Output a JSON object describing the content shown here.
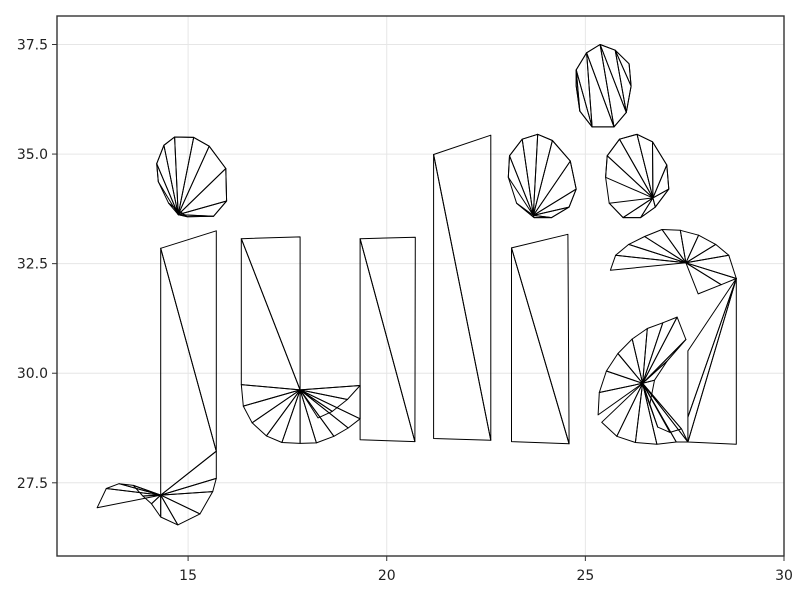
{
  "chart_data": {
    "type": "triangulation",
    "title": "",
    "xlabel": "",
    "ylabel": "",
    "xlim": [
      11.7,
      30.0
    ],
    "ylim": [
      25.83,
      38.15
    ],
    "grid": true,
    "line_color": "#000000",
    "x_ticks": [
      {
        "value": 15,
        "label": "15"
      },
      {
        "value": 20,
        "label": "20"
      },
      {
        "value": 25,
        "label": "25"
      },
      {
        "value": 30,
        "label": "30"
      }
    ],
    "y_ticks": [
      {
        "value": 27.5,
        "label": "27.5"
      },
      {
        "value": 30.0,
        "label": "30.0"
      },
      {
        "value": 32.5,
        "label": "32.5"
      },
      {
        "value": 35.0,
        "label": "35.0"
      },
      {
        "value": 37.5,
        "label": "37.5"
      }
    ],
    "shapes": [
      {
        "name": "j-dot",
        "points": [
          [
            14.25,
            34.37
          ],
          [
            14.21,
            34.78
          ],
          [
            14.39,
            35.2
          ],
          [
            14.66,
            35.39
          ],
          [
            15.14,
            35.38
          ],
          [
            15.53,
            35.18
          ],
          [
            15.95,
            34.67
          ],
          [
            15.97,
            33.93
          ],
          [
            15.64,
            33.58
          ],
          [
            14.97,
            33.57
          ],
          [
            14.51,
            33.88
          ]
        ],
        "hub": [
          14.75,
          33.62
        ],
        "hubs2": []
      },
      {
        "name": "i-dot",
        "points": [
          [
            24.77,
            36.55
          ],
          [
            24.77,
            36.92
          ],
          [
            25.03,
            37.31
          ],
          [
            25.37,
            37.5
          ],
          [
            25.75,
            37.37
          ],
          [
            26.1,
            37.06
          ],
          [
            26.15,
            36.55
          ],
          [
            26.03,
            35.95
          ],
          [
            25.72,
            35.62
          ],
          [
            25.17,
            35.62
          ],
          [
            24.86,
            35.98
          ]
        ],
        "hub": null,
        "hubs2": []
      },
      {
        "name": "a-dot-left",
        "points": [
          [
            23.06,
            34.47
          ],
          [
            23.09,
            34.96
          ],
          [
            23.41,
            35.34
          ],
          [
            23.8,
            35.45
          ],
          [
            24.17,
            35.31
          ],
          [
            24.62,
            34.84
          ],
          [
            24.77,
            34.2
          ],
          [
            24.59,
            33.79
          ],
          [
            24.15,
            33.55
          ],
          [
            23.71,
            33.55
          ],
          [
            23.27,
            33.88
          ]
        ],
        "hub": [
          23.69,
          33.6
        ],
        "hubs2": []
      },
      {
        "name": "a-dot-right",
        "points": [
          [
            25.51,
            34.47
          ],
          [
            25.55,
            34.96
          ],
          [
            25.86,
            35.34
          ],
          [
            26.3,
            35.45
          ],
          [
            26.69,
            35.28
          ],
          [
            27.05,
            34.75
          ],
          [
            27.1,
            34.2
          ],
          [
            26.76,
            33.79
          ],
          [
            26.39,
            33.55
          ],
          [
            25.95,
            33.55
          ],
          [
            25.6,
            33.88
          ]
        ],
        "hub": [
          26.7,
          34.0
        ],
        "hubs2": []
      }
    ],
    "quads": [
      {
        "name": "j-stem",
        "points": [
          [
            14.31,
            32.85
          ],
          [
            15.71,
            33.25
          ],
          [
            15.71,
            28.22
          ],
          [
            14.31,
            27.22
          ]
        ]
      },
      {
        "name": "u-left-stem",
        "points": [
          [
            16.34,
            33.07
          ],
          [
            17.82,
            33.11
          ],
          [
            17.82,
            29.62
          ],
          [
            16.34,
            29.74
          ]
        ]
      },
      {
        "name": "u-right-stem",
        "points": [
          [
            19.33,
            33.07
          ],
          [
            20.72,
            33.1
          ],
          [
            20.71,
            28.44
          ],
          [
            19.33,
            28.48
          ]
        ]
      },
      {
        "name": "l-stem",
        "points": [
          [
            21.18,
            34.99
          ],
          [
            22.62,
            35.43
          ],
          [
            22.62,
            28.47
          ],
          [
            21.18,
            28.51
          ]
        ]
      },
      {
        "name": "i-stem",
        "points": [
          [
            23.14,
            32.86
          ],
          [
            24.56,
            33.17
          ],
          [
            24.59,
            28.39
          ],
          [
            23.14,
            28.44
          ]
        ]
      }
    ],
    "fans": [
      {
        "name": "j-hook",
        "hub": [
          14.31,
          27.22
        ],
        "points": [
          [
            12.71,
            26.93
          ],
          [
            12.94,
            27.37
          ],
          [
            13.26,
            27.48
          ],
          [
            13.62,
            27.44
          ],
          [
            13.86,
            27.2
          ],
          [
            14.08,
            27.02
          ],
          [
            14.31,
            26.72
          ],
          [
            14.74,
            26.54
          ],
          [
            15.3,
            26.79
          ],
          [
            15.62,
            27.3
          ],
          [
            15.71,
            27.6
          ],
          [
            15.71,
            28.22
          ]
        ]
      },
      {
        "name": "u-bowl",
        "hub": [
          17.82,
          29.62
        ],
        "points": [
          [
            16.34,
            29.74
          ],
          [
            16.39,
            29.25
          ],
          [
            16.61,
            28.87
          ],
          [
            16.97,
            28.57
          ],
          [
            17.36,
            28.42
          ],
          [
            17.82,
            28.4
          ],
          [
            18.23,
            28.41
          ],
          [
            18.67,
            28.56
          ],
          [
            19.03,
            28.75
          ],
          [
            19.33,
            28.96
          ],
          [
            19.33,
            29.72
          ],
          [
            19.01,
            29.4
          ],
          [
            18.63,
            29.13
          ],
          [
            18.27,
            28.98
          ]
        ]
      },
      {
        "name": "a-top",
        "hub": [
          27.53,
          32.52
        ],
        "points": [
          [
            25.63,
            32.35
          ],
          [
            25.76,
            32.69
          ],
          [
            26.09,
            32.94
          ],
          [
            26.49,
            33.12
          ],
          [
            26.93,
            33.28
          ],
          [
            27.39,
            33.26
          ],
          [
            27.85,
            33.15
          ],
          [
            28.28,
            32.94
          ],
          [
            28.61,
            32.69
          ],
          [
            28.8,
            32.16
          ],
          [
            28.42,
            32.02
          ],
          [
            27.84,
            31.81
          ]
        ]
      },
      {
        "name": "a-bowl",
        "hub": [
          26.44,
          29.77
        ],
        "points": [
          [
            25.32,
            29.05
          ],
          [
            25.35,
            29.56
          ],
          [
            25.53,
            30.05
          ],
          [
            25.82,
            30.45
          ],
          [
            26.18,
            30.78
          ],
          [
            26.56,
            31.02
          ],
          [
            26.95,
            31.15
          ],
          [
            27.31,
            31.28
          ],
          [
            27.53,
            30.77
          ],
          [
            27.06,
            30.28
          ],
          [
            26.74,
            29.84
          ],
          [
            26.62,
            29.28
          ],
          [
            26.82,
            28.77
          ],
          [
            27.13,
            28.65
          ],
          [
            27.42,
            28.73
          ],
          [
            27.58,
            28.43
          ],
          [
            27.29,
            28.43
          ],
          [
            26.8,
            28.38
          ],
          [
            26.26,
            28.42
          ],
          [
            25.79,
            28.56
          ],
          [
            25.41,
            28.88
          ]
        ]
      },
      {
        "name": "a-stem",
        "hub": [
          28.8,
          32.16
        ],
        "points": [
          [
            27.58,
            30.51
          ],
          [
            27.58,
            29.0
          ],
          [
            27.58,
            28.43
          ],
          [
            28.8,
            28.38
          ]
        ]
      }
    ]
  }
}
